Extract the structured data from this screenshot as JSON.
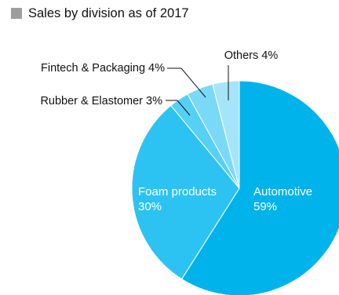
{
  "legend_color": "#9e9e9e",
  "chart_data": {
    "type": "pie",
    "title": "Sales by division as of 2017",
    "slices": [
      {
        "label": "Automotive",
        "value": 59,
        "value_text": "59%",
        "color": "#00b3ea",
        "label_position": "inside"
      },
      {
        "label": "Foam products",
        "value": 30,
        "value_text": "30%",
        "color": "#2cc3f2",
        "label_position": "inside"
      },
      {
        "label": "Rubber & Elastomer",
        "value": 3,
        "value_text": "3%",
        "color": "#57d0f5",
        "label_position": "outside"
      },
      {
        "label": "Fintech & Packaging",
        "value": 4,
        "value_text": "4%",
        "color": "#7ad9f7",
        "label_position": "outside"
      },
      {
        "label": "Others",
        "value": 4,
        "value_text": "4%",
        "color": "#a6e5f9",
        "label_position": "outside"
      }
    ],
    "start_angle": "12 o'clock",
    "direction": "clockwise",
    "slice_border_color": "#ffffff"
  }
}
